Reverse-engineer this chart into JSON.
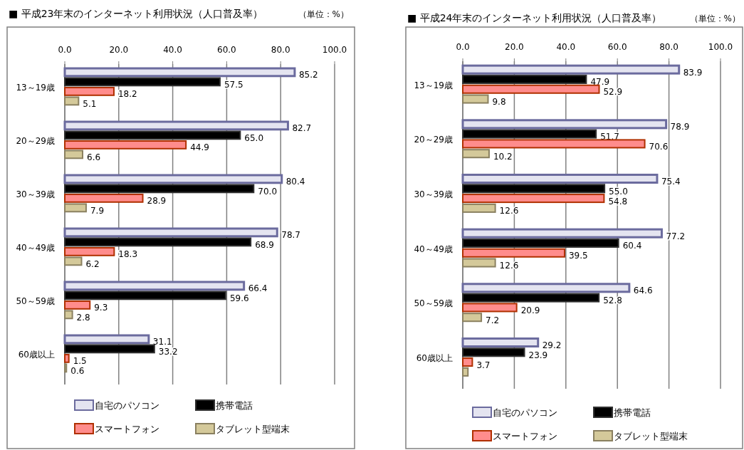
{
  "chart_data": [
    {
      "type": "bar",
      "orientation": "horizontal",
      "title": "■ 平成23年末のインターネット利用状況（人口普及率）",
      "annotations": [
        "（単位：%）"
      ],
      "categories": [
        "13～19歳",
        "20～29歳",
        "30～39歳",
        "40～49歳",
        "50～59歳",
        "60歳以上"
      ],
      "xlim": [
        0,
        100
      ],
      "xticks": [
        {
          "value": 0,
          "label": "0.0"
        },
        {
          "value": 20,
          "label": "20.0"
        },
        {
          "value": 40,
          "label": "40.0"
        },
        {
          "value": 60,
          "label": "60.0"
        },
        {
          "value": 80,
          "label": "80.0"
        },
        {
          "value": 100,
          "label": "100.0"
        }
      ],
      "grid": "x",
      "legend": "bottom",
      "series": [
        {
          "name": "自宅のパソコン",
          "color": "#e4e4f0",
          "values": [
            85.2,
            82.7,
            80.4,
            78.7,
            66.4,
            31.1
          ],
          "value_labels": [
            "85.2",
            "82.7",
            "80.4",
            "78.7",
            "66.4",
            "31.1"
          ]
        },
        {
          "name": "携帯電話",
          "color": "#000000",
          "values": [
            57.5,
            65.0,
            70.0,
            68.9,
            59.6,
            33.2
          ],
          "value_labels": [
            "57.5",
            "65.0",
            "70.0",
            "68.9",
            "59.6",
            "33.2"
          ]
        },
        {
          "name": "スマートフォン",
          "color": "#ff8c8c",
          "values": [
            18.2,
            44.9,
            28.9,
            18.3,
            9.3,
            1.5
          ],
          "value_labels": [
            "18.2",
            "44.9",
            "28.9",
            "18.3",
            "9.3",
            "1.5"
          ]
        },
        {
          "name": "タブレット型端末",
          "color": "#d4c99a",
          "values": [
            5.1,
            6.6,
            7.9,
            6.2,
            2.8,
            0.6
          ],
          "value_labels": [
            "5.1",
            "6.6",
            "7.9",
            "6.2",
            "2.8",
            "0.6"
          ]
        }
      ]
    },
    {
      "type": "bar",
      "orientation": "horizontal",
      "title": "■ 平成24年末のインターネット利用状況（人口普及率）",
      "annotations": [
        "（単位：%）"
      ],
      "categories": [
        "13～19歳",
        "20～29歳",
        "30～39歳",
        "40～49歳",
        "50～59歳",
        "60歳以上"
      ],
      "xlim": [
        0,
        100
      ],
      "xticks": [
        {
          "value": 0,
          "label": "0.0"
        },
        {
          "value": 20,
          "label": "20.0"
        },
        {
          "value": 40,
          "label": "40.0"
        },
        {
          "value": 60,
          "label": "60.0"
        },
        {
          "value": 80,
          "label": "80.0"
        },
        {
          "value": 100,
          "label": "100.0"
        }
      ],
      "grid": "x",
      "legend": "bottom",
      "series": [
        {
          "name": "自宅のパソコン",
          "color": "#e4e4f0",
          "values": [
            83.9,
            78.9,
            75.4,
            77.2,
            64.6,
            29.2
          ],
          "value_labels": [
            "83.9",
            "78.9",
            "75.4",
            "77.2",
            "64.6",
            "29.2"
          ]
        },
        {
          "name": "携帯電話",
          "color": "#000000",
          "values": [
            47.9,
            51.7,
            55.0,
            60.4,
            52.8,
            23.9
          ],
          "value_labels": [
            "47.9",
            "51.7",
            "55.0",
            "60.4",
            "52.8",
            "23.9"
          ]
        },
        {
          "name": "スマートフォン",
          "color": "#ff8c8c",
          "values": [
            52.9,
            70.6,
            54.8,
            39.5,
            20.9,
            3.7
          ],
          "value_labels": [
            "52.9",
            "70.6",
            "54.8",
            "39.5",
            "20.9",
            "3.7"
          ]
        },
        {
          "name": "タブレット型端末",
          "color": "#d4c99a",
          "values": [
            9.8,
            10.2,
            12.6,
            12.6,
            7.2,
            2.0
          ],
          "value_labels": [
            "9.8",
            "10.2",
            "12.6",
            "12.6",
            "7.2",
            null
          ]
        }
      ]
    }
  ]
}
